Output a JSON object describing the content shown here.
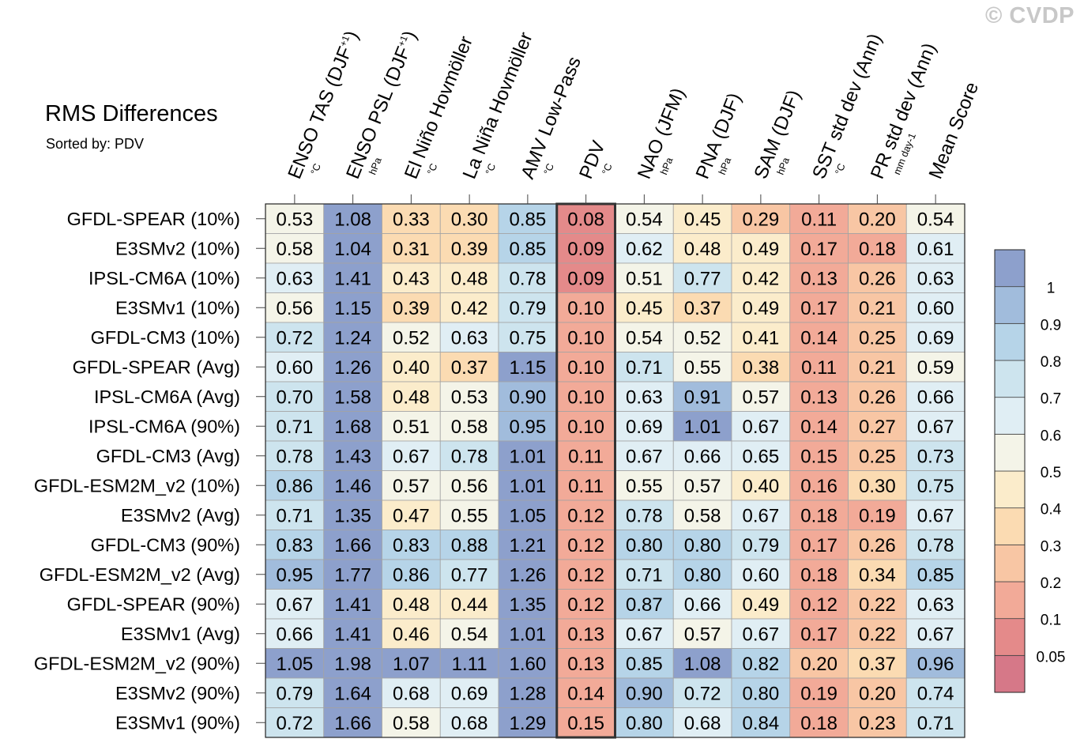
{
  "title": "RMS Differences",
  "subtitle": "Sorted by: PDV",
  "watermark": "© CVDP",
  "chart_data": {
    "type": "heatmap",
    "title": "RMS Differences",
    "sort_by": "PDV",
    "columns": [
      {
        "label": "ENSO TAS (DJF",
        "sup": "+1",
        "close": ")",
        "unit": "°C"
      },
      {
        "label": "ENSO PSL (DJF",
        "sup": "+1",
        "close": ")",
        "unit": "hPa"
      },
      {
        "label": "El Niño Hovmöller",
        "sup": "",
        "close": "",
        "unit": "°C"
      },
      {
        "label": "La Niña Hovmöller",
        "sup": "",
        "close": "",
        "unit": "°C"
      },
      {
        "label": "AMV Low-Pass",
        "sup": "",
        "close": "",
        "unit": "°C"
      },
      {
        "label": "PDV",
        "sup": "",
        "close": "",
        "unit": "°C"
      },
      {
        "label": "NAO (JFM)",
        "sup": "",
        "close": "",
        "unit": "hPa"
      },
      {
        "label": "PNA (DJF)",
        "sup": "",
        "close": "",
        "unit": "hPa"
      },
      {
        "label": "SAM (DJF)",
        "sup": "",
        "close": "",
        "unit": "hPa"
      },
      {
        "label": "SST std dev (Ann)",
        "sup": "",
        "close": "",
        "unit": "°C"
      },
      {
        "label": "PR std dev (Ann)",
        "sup": "",
        "close": "",
        "unit": "mm day-1"
      },
      {
        "label": "Mean Score",
        "sup": "",
        "close": "",
        "unit": ""
      }
    ],
    "highlight_column": "PDV",
    "rows": [
      "GFDL-SPEAR (10%)",
      "E3SMv2 (10%)",
      "IPSL-CM6A (10%)",
      "E3SMv1 (10%)",
      "GFDL-CM3 (10%)",
      "GFDL-SPEAR (Avg)",
      "IPSL-CM6A (Avg)",
      "IPSL-CM6A (90%)",
      "GFDL-CM3 (Avg)",
      "GFDL-ESM2M_v2 (10%)",
      "E3SMv2 (Avg)",
      "GFDL-CM3 (90%)",
      "GFDL-ESM2M_v2 (Avg)",
      "GFDL-SPEAR (90%)",
      "E3SMv1 (Avg)",
      "GFDL-ESM2M_v2 (90%)",
      "E3SMv2 (90%)",
      "E3SMv1 (90%)"
    ],
    "values": [
      [
        "0.53",
        "1.08",
        "0.33",
        "0.30",
        "0.85",
        "0.08",
        "0.54",
        "0.45",
        "0.29",
        "0.11",
        "0.20",
        "0.54"
      ],
      [
        "0.58",
        "1.04",
        "0.31",
        "0.39",
        "0.85",
        "0.09",
        "0.62",
        "0.48",
        "0.49",
        "0.17",
        "0.18",
        "0.61"
      ],
      [
        "0.63",
        "1.41",
        "0.43",
        "0.48",
        "0.78",
        "0.09",
        "0.51",
        "0.77",
        "0.42",
        "0.13",
        "0.26",
        "0.63"
      ],
      [
        "0.56",
        "1.15",
        "0.39",
        "0.42",
        "0.79",
        "0.10",
        "0.45",
        "0.37",
        "0.49",
        "0.17",
        "0.21",
        "0.60"
      ],
      [
        "0.72",
        "1.24",
        "0.52",
        "0.63",
        "0.75",
        "0.10",
        "0.54",
        "0.52",
        "0.41",
        "0.14",
        "0.25",
        "0.69"
      ],
      [
        "0.60",
        "1.26",
        "0.40",
        "0.37",
        "1.15",
        "0.10",
        "0.71",
        "0.55",
        "0.38",
        "0.11",
        "0.21",
        "0.59"
      ],
      [
        "0.70",
        "1.58",
        "0.48",
        "0.53",
        "0.90",
        "0.10",
        "0.63",
        "0.91",
        "0.57",
        "0.13",
        "0.26",
        "0.66"
      ],
      [
        "0.71",
        "1.68",
        "0.51",
        "0.58",
        "0.95",
        "0.10",
        "0.69",
        "1.01",
        "0.67",
        "0.14",
        "0.27",
        "0.67"
      ],
      [
        "0.78",
        "1.43",
        "0.67",
        "0.78",
        "1.01",
        "0.11",
        "0.67",
        "0.66",
        "0.65",
        "0.15",
        "0.25",
        "0.73"
      ],
      [
        "0.86",
        "1.46",
        "0.57",
        "0.56",
        "1.01",
        "0.11",
        "0.55",
        "0.57",
        "0.40",
        "0.16",
        "0.30",
        "0.75"
      ],
      [
        "0.71",
        "1.35",
        "0.47",
        "0.55",
        "1.05",
        "0.12",
        "0.78",
        "0.58",
        "0.67",
        "0.18",
        "0.19",
        "0.67"
      ],
      [
        "0.83",
        "1.66",
        "0.83",
        "0.88",
        "1.21",
        "0.12",
        "0.80",
        "0.80",
        "0.79",
        "0.17",
        "0.26",
        "0.78"
      ],
      [
        "0.95",
        "1.77",
        "0.86",
        "0.77",
        "1.26",
        "0.12",
        "0.71",
        "0.80",
        "0.60",
        "0.18",
        "0.34",
        "0.85"
      ],
      [
        "0.67",
        "1.41",
        "0.48",
        "0.44",
        "1.35",
        "0.12",
        "0.87",
        "0.66",
        "0.49",
        "0.12",
        "0.22",
        "0.63"
      ],
      [
        "0.66",
        "1.41",
        "0.46",
        "0.54",
        "1.01",
        "0.13",
        "0.67",
        "0.57",
        "0.67",
        "0.17",
        "0.22",
        "0.67"
      ],
      [
        "1.05",
        "1.98",
        "1.07",
        "1.11",
        "1.60",
        "0.13",
        "0.85",
        "1.08",
        "0.82",
        "0.20",
        "0.37",
        "0.96"
      ],
      [
        "0.79",
        "1.64",
        "0.68",
        "0.69",
        "1.28",
        "0.14",
        "0.90",
        "0.72",
        "0.80",
        "0.19",
        "0.20",
        "0.74"
      ],
      [
        "0.72",
        "1.66",
        "0.58",
        "0.68",
        "1.29",
        "0.15",
        "0.80",
        "0.68",
        "0.84",
        "0.18",
        "0.23",
        "0.71"
      ]
    ],
    "colorbar": {
      "levels": [
        0.05,
        0.1,
        0.2,
        0.3,
        0.4,
        0.5,
        0.6,
        0.7,
        0.8,
        0.9,
        1
      ],
      "tick_labels": [
        "0.05",
        "0.1",
        "0.2",
        "0.3",
        "0.4",
        "0.5",
        "0.6",
        "0.7",
        "0.8",
        "0.9",
        "1"
      ],
      "colors": [
        "#d67888",
        "#e48a8a",
        "#f2aa98",
        "#f8c6a4",
        "#fbdbb2",
        "#fbeccb",
        "#f4f4e8",
        "#e0eef4",
        "#cde4ee",
        "#b6d4e8",
        "#a1bcdc",
        "#8da0cc"
      ]
    }
  }
}
